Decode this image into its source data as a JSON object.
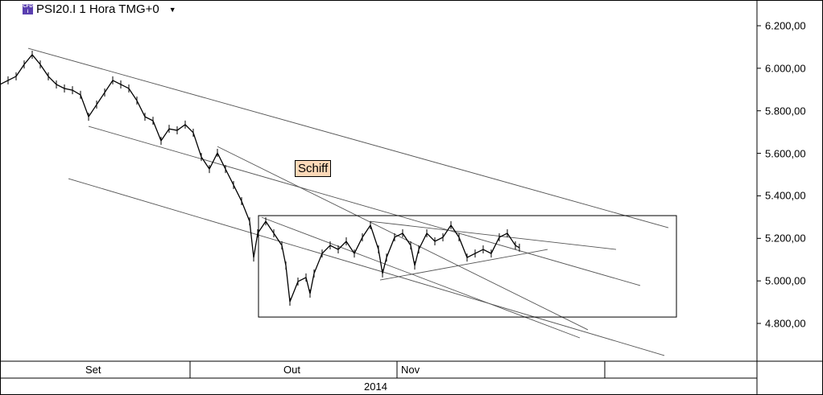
{
  "header": {
    "title": "PSI20.I 1 Hora TMG+0",
    "icon": "cfd-instrument-icon",
    "dropdown_icon": "caret-down-icon"
  },
  "chart_data": {
    "type": "line",
    "style": "ohlc-bars",
    "ylim": [
      4640,
      6310
    ],
    "yticks": [
      "6.200,00",
      "6.000,00",
      "5.800,00",
      "5.600,00",
      "5.400,00",
      "5.200,00",
      "5.000,00",
      "4.800,00"
    ],
    "ytick_values": [
      6200,
      6000,
      5800,
      5600,
      5400,
      5200,
      5000,
      4800
    ],
    "x_months": [
      "Set",
      "Out",
      "Nov",
      ""
    ],
    "x_year": "2014",
    "series_bars": [
      0,
      2,
      4,
      6,
      8,
      10,
      12,
      14,
      16,
      18,
      20,
      22,
      24,
      26,
      28,
      30,
      32,
      34,
      36,
      38,
      40,
      42,
      44,
      46,
      48,
      50,
      52,
      54,
      56,
      58,
      60,
      62,
      63,
      64,
      66,
      68,
      70,
      71,
      72,
      74,
      76,
      77,
      78,
      80,
      82,
      84,
      86,
      88,
      90,
      92,
      94,
      95,
      96,
      98,
      100,
      102,
      103,
      104,
      106,
      108,
      110,
      112,
      114,
      116,
      118,
      120,
      122,
      124,
      126,
      128,
      129
    ],
    "series_prices": [
      5924,
      5943,
      5962,
      6018,
      6064,
      6018,
      5962,
      5924,
      5905,
      5897,
      5875,
      5772,
      5829,
      5886,
      5943,
      5924,
      5905,
      5848,
      5772,
      5753,
      5659,
      5715,
      5708,
      5735,
      5697,
      5583,
      5526,
      5602,
      5526,
      5451,
      5375,
      5280,
      5110,
      5224,
      5280,
      5224,
      5167,
      5072,
      4902,
      4997,
      5016,
      4940,
      5035,
      5129,
      5167,
      5148,
      5186,
      5129,
      5205,
      5262,
      5148,
      5035,
      5110,
      5205,
      5224,
      5167,
      5072,
      5148,
      5224,
      5186,
      5205,
      5262,
      5205,
      5110,
      5129,
      5148,
      5129,
      5205,
      5224,
      5167,
      5156
    ],
    "trendlines": [
      [
        [
          7,
          6094
        ],
        [
          166,
          5250
        ]
      ],
      [
        [
          22,
          5727
        ],
        [
          159,
          4978
        ]
      ],
      [
        [
          17,
          5481
        ],
        [
          165,
          4649
        ]
      ],
      [
        [
          54,
          5632
        ],
        [
          146,
          4770
        ]
      ],
      [
        [
          65,
          5299
        ],
        [
          144,
          4732
        ]
      ],
      [
        [
          92,
          5280
        ],
        [
          153,
          5148
        ]
      ],
      [
        [
          94.4,
          5004
        ],
        [
          136,
          5148
        ]
      ]
    ],
    "rectangle": {
      "bars": [
        64.2,
        168
      ],
      "prices": [
        4830,
        5307
      ]
    },
    "annotation": "Schiff",
    "colors": {
      "line": "#000000",
      "annotation_bg": "#fcd9b8"
    }
  }
}
